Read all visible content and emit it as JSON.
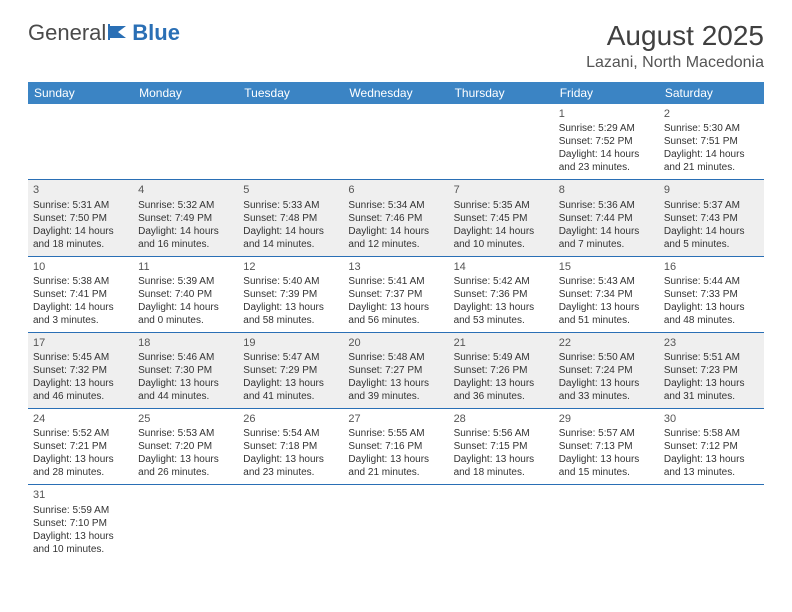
{
  "logo": {
    "part1": "General",
    "part2": "Blue"
  },
  "title": "August 2025",
  "location": "Lazani, North Macedonia",
  "colors": {
    "header_bg": "#3b84c4",
    "header_text": "#ffffff",
    "row_alt_bg": "#f2f2f2",
    "row_bg": "#ffffff",
    "border": "#2a6fb5",
    "logo_accent": "#2a6fb5",
    "text": "#333333"
  },
  "weekdays": [
    "Sunday",
    "Monday",
    "Tuesday",
    "Wednesday",
    "Thursday",
    "Friday",
    "Saturday"
  ],
  "weeks": [
    [
      null,
      null,
      null,
      null,
      null,
      {
        "d": "1",
        "sr": "Sunrise: 5:29 AM",
        "ss": "Sunset: 7:52 PM",
        "dl1": "Daylight: 14 hours",
        "dl2": "and 23 minutes."
      },
      {
        "d": "2",
        "sr": "Sunrise: 5:30 AM",
        "ss": "Sunset: 7:51 PM",
        "dl1": "Daylight: 14 hours",
        "dl2": "and 21 minutes."
      }
    ],
    [
      {
        "d": "3",
        "sr": "Sunrise: 5:31 AM",
        "ss": "Sunset: 7:50 PM",
        "dl1": "Daylight: 14 hours",
        "dl2": "and 18 minutes."
      },
      {
        "d": "4",
        "sr": "Sunrise: 5:32 AM",
        "ss": "Sunset: 7:49 PM",
        "dl1": "Daylight: 14 hours",
        "dl2": "and 16 minutes."
      },
      {
        "d": "5",
        "sr": "Sunrise: 5:33 AM",
        "ss": "Sunset: 7:48 PM",
        "dl1": "Daylight: 14 hours",
        "dl2": "and 14 minutes."
      },
      {
        "d": "6",
        "sr": "Sunrise: 5:34 AM",
        "ss": "Sunset: 7:46 PM",
        "dl1": "Daylight: 14 hours",
        "dl2": "and 12 minutes."
      },
      {
        "d": "7",
        "sr": "Sunrise: 5:35 AM",
        "ss": "Sunset: 7:45 PM",
        "dl1": "Daylight: 14 hours",
        "dl2": "and 10 minutes."
      },
      {
        "d": "8",
        "sr": "Sunrise: 5:36 AM",
        "ss": "Sunset: 7:44 PM",
        "dl1": "Daylight: 14 hours",
        "dl2": "and 7 minutes."
      },
      {
        "d": "9",
        "sr": "Sunrise: 5:37 AM",
        "ss": "Sunset: 7:43 PM",
        "dl1": "Daylight: 14 hours",
        "dl2": "and 5 minutes."
      }
    ],
    [
      {
        "d": "10",
        "sr": "Sunrise: 5:38 AM",
        "ss": "Sunset: 7:41 PM",
        "dl1": "Daylight: 14 hours",
        "dl2": "and 3 minutes."
      },
      {
        "d": "11",
        "sr": "Sunrise: 5:39 AM",
        "ss": "Sunset: 7:40 PM",
        "dl1": "Daylight: 14 hours",
        "dl2": "and 0 minutes."
      },
      {
        "d": "12",
        "sr": "Sunrise: 5:40 AM",
        "ss": "Sunset: 7:39 PM",
        "dl1": "Daylight: 13 hours",
        "dl2": "and 58 minutes."
      },
      {
        "d": "13",
        "sr": "Sunrise: 5:41 AM",
        "ss": "Sunset: 7:37 PM",
        "dl1": "Daylight: 13 hours",
        "dl2": "and 56 minutes."
      },
      {
        "d": "14",
        "sr": "Sunrise: 5:42 AM",
        "ss": "Sunset: 7:36 PM",
        "dl1": "Daylight: 13 hours",
        "dl2": "and 53 minutes."
      },
      {
        "d": "15",
        "sr": "Sunrise: 5:43 AM",
        "ss": "Sunset: 7:34 PM",
        "dl1": "Daylight: 13 hours",
        "dl2": "and 51 minutes."
      },
      {
        "d": "16",
        "sr": "Sunrise: 5:44 AM",
        "ss": "Sunset: 7:33 PM",
        "dl1": "Daylight: 13 hours",
        "dl2": "and 48 minutes."
      }
    ],
    [
      {
        "d": "17",
        "sr": "Sunrise: 5:45 AM",
        "ss": "Sunset: 7:32 PM",
        "dl1": "Daylight: 13 hours",
        "dl2": "and 46 minutes."
      },
      {
        "d": "18",
        "sr": "Sunrise: 5:46 AM",
        "ss": "Sunset: 7:30 PM",
        "dl1": "Daylight: 13 hours",
        "dl2": "and 44 minutes."
      },
      {
        "d": "19",
        "sr": "Sunrise: 5:47 AM",
        "ss": "Sunset: 7:29 PM",
        "dl1": "Daylight: 13 hours",
        "dl2": "and 41 minutes."
      },
      {
        "d": "20",
        "sr": "Sunrise: 5:48 AM",
        "ss": "Sunset: 7:27 PM",
        "dl1": "Daylight: 13 hours",
        "dl2": "and 39 minutes."
      },
      {
        "d": "21",
        "sr": "Sunrise: 5:49 AM",
        "ss": "Sunset: 7:26 PM",
        "dl1": "Daylight: 13 hours",
        "dl2": "and 36 minutes."
      },
      {
        "d": "22",
        "sr": "Sunrise: 5:50 AM",
        "ss": "Sunset: 7:24 PM",
        "dl1": "Daylight: 13 hours",
        "dl2": "and 33 minutes."
      },
      {
        "d": "23",
        "sr": "Sunrise: 5:51 AM",
        "ss": "Sunset: 7:23 PM",
        "dl1": "Daylight: 13 hours",
        "dl2": "and 31 minutes."
      }
    ],
    [
      {
        "d": "24",
        "sr": "Sunrise: 5:52 AM",
        "ss": "Sunset: 7:21 PM",
        "dl1": "Daylight: 13 hours",
        "dl2": "and 28 minutes."
      },
      {
        "d": "25",
        "sr": "Sunrise: 5:53 AM",
        "ss": "Sunset: 7:20 PM",
        "dl1": "Daylight: 13 hours",
        "dl2": "and 26 minutes."
      },
      {
        "d": "26",
        "sr": "Sunrise: 5:54 AM",
        "ss": "Sunset: 7:18 PM",
        "dl1": "Daylight: 13 hours",
        "dl2": "and 23 minutes."
      },
      {
        "d": "27",
        "sr": "Sunrise: 5:55 AM",
        "ss": "Sunset: 7:16 PM",
        "dl1": "Daylight: 13 hours",
        "dl2": "and 21 minutes."
      },
      {
        "d": "28",
        "sr": "Sunrise: 5:56 AM",
        "ss": "Sunset: 7:15 PM",
        "dl1": "Daylight: 13 hours",
        "dl2": "and 18 minutes."
      },
      {
        "d": "29",
        "sr": "Sunrise: 5:57 AM",
        "ss": "Sunset: 7:13 PM",
        "dl1": "Daylight: 13 hours",
        "dl2": "and 15 minutes."
      },
      {
        "d": "30",
        "sr": "Sunrise: 5:58 AM",
        "ss": "Sunset: 7:12 PM",
        "dl1": "Daylight: 13 hours",
        "dl2": "and 13 minutes."
      }
    ],
    [
      {
        "d": "31",
        "sr": "Sunrise: 5:59 AM",
        "ss": "Sunset: 7:10 PM",
        "dl1": "Daylight: 13 hours",
        "dl2": "and 10 minutes."
      },
      null,
      null,
      null,
      null,
      null,
      null
    ]
  ]
}
